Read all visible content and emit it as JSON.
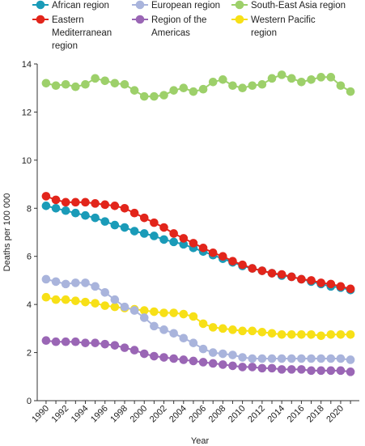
{
  "chart_data": {
    "type": "line",
    "xlabel": "Year",
    "ylabel": "Deaths per 100 000",
    "xlim": [
      1990,
      2021
    ],
    "ylim": [
      0,
      14
    ],
    "yticks": [
      0,
      2,
      4,
      6,
      8,
      10,
      12,
      14
    ],
    "xticks": [
      1990,
      1992,
      1994,
      1996,
      1998,
      2000,
      2002,
      2004,
      2006,
      2008,
      2010,
      2012,
      2014,
      2016,
      2018,
      2020
    ],
    "x": [
      1990,
      1991,
      1992,
      1993,
      1994,
      1995,
      1996,
      1997,
      1998,
      1999,
      2000,
      2001,
      2002,
      2003,
      2004,
      2005,
      2006,
      2007,
      2008,
      2009,
      2010,
      2011,
      2012,
      2013,
      2014,
      2015,
      2016,
      2017,
      2018,
      2019,
      2020,
      2021
    ],
    "legend_position": "top",
    "series": [
      {
        "name": "African region",
        "color": "#1a9bb8",
        "values": [
          8.1,
          8.0,
          7.9,
          7.8,
          7.7,
          7.6,
          7.45,
          7.3,
          7.2,
          7.05,
          6.95,
          6.85,
          6.7,
          6.6,
          6.5,
          6.35,
          6.2,
          6.05,
          5.9,
          5.75,
          5.6,
          5.5,
          5.4,
          5.3,
          5.2,
          5.15,
          5.05,
          4.95,
          4.85,
          4.75,
          4.7,
          4.6
        ]
      },
      {
        "name": "Eastern Mediterranean region",
        "color": "#e2251b",
        "values": [
          8.5,
          8.35,
          8.25,
          8.25,
          8.25,
          8.2,
          8.15,
          8.1,
          8.0,
          7.8,
          7.6,
          7.4,
          7.2,
          6.95,
          6.75,
          6.55,
          6.35,
          6.15,
          6.0,
          5.8,
          5.65,
          5.5,
          5.4,
          5.3,
          5.25,
          5.15,
          5.05,
          5.0,
          4.9,
          4.85,
          4.75,
          4.65
        ]
      },
      {
        "name": "European region",
        "color": "#a9b4dc",
        "values": [
          5.05,
          4.95,
          4.85,
          4.9,
          4.9,
          4.75,
          4.5,
          4.2,
          3.9,
          3.75,
          3.45,
          3.1,
          2.95,
          2.8,
          2.6,
          2.4,
          2.15,
          2.0,
          1.95,
          1.9,
          1.8,
          1.75,
          1.75,
          1.75,
          1.75,
          1.75,
          1.75,
          1.75,
          1.75,
          1.75,
          1.75,
          1.7
        ]
      },
      {
        "name": "Region of the Americas",
        "color": "#9a66b5",
        "values": [
          2.5,
          2.45,
          2.45,
          2.45,
          2.4,
          2.4,
          2.35,
          2.3,
          2.2,
          2.1,
          1.95,
          1.85,
          1.8,
          1.75,
          1.7,
          1.65,
          1.6,
          1.55,
          1.5,
          1.45,
          1.4,
          1.4,
          1.35,
          1.35,
          1.3,
          1.3,
          1.3,
          1.25,
          1.25,
          1.25,
          1.25,
          1.2
        ]
      },
      {
        "name": "South-East Asia region",
        "color": "#9dd06a",
        "values": [
          13.2,
          13.1,
          13.15,
          13.05,
          13.15,
          13.4,
          13.3,
          13.2,
          13.15,
          12.9,
          12.65,
          12.65,
          12.7,
          12.9,
          13.0,
          12.85,
          12.95,
          13.25,
          13.35,
          13.1,
          13.0,
          13.1,
          13.15,
          13.4,
          13.55,
          13.4,
          13.25,
          13.35,
          13.45,
          13.45,
          13.1,
          12.85
        ]
      },
      {
        "name": "Western Pacific region",
        "color": "#f7e017",
        "values": [
          4.3,
          4.2,
          4.2,
          4.15,
          4.1,
          4.05,
          3.95,
          3.9,
          3.85,
          3.8,
          3.75,
          3.7,
          3.65,
          3.65,
          3.6,
          3.5,
          3.2,
          3.05,
          3.0,
          2.95,
          2.9,
          2.9,
          2.85,
          2.8,
          2.75,
          2.75,
          2.75,
          2.75,
          2.7,
          2.75,
          2.75,
          2.75
        ]
      }
    ],
    "legend": [
      {
        "label_lines": [
          "African region"
        ],
        "series_index": 0
      },
      {
        "label_lines": [
          "European region"
        ],
        "series_index": 2
      },
      {
        "label_lines": [
          "South-East Asia region"
        ],
        "series_index": 4
      },
      {
        "label_lines": [
          "Eastern",
          "Mediterranean",
          "region"
        ],
        "series_index": 1
      },
      {
        "label_lines": [
          "Region of the",
          "Americas"
        ],
        "series_index": 3
      },
      {
        "label_lines": [
          "Western Pacific",
          "region"
        ],
        "series_index": 5
      }
    ]
  }
}
